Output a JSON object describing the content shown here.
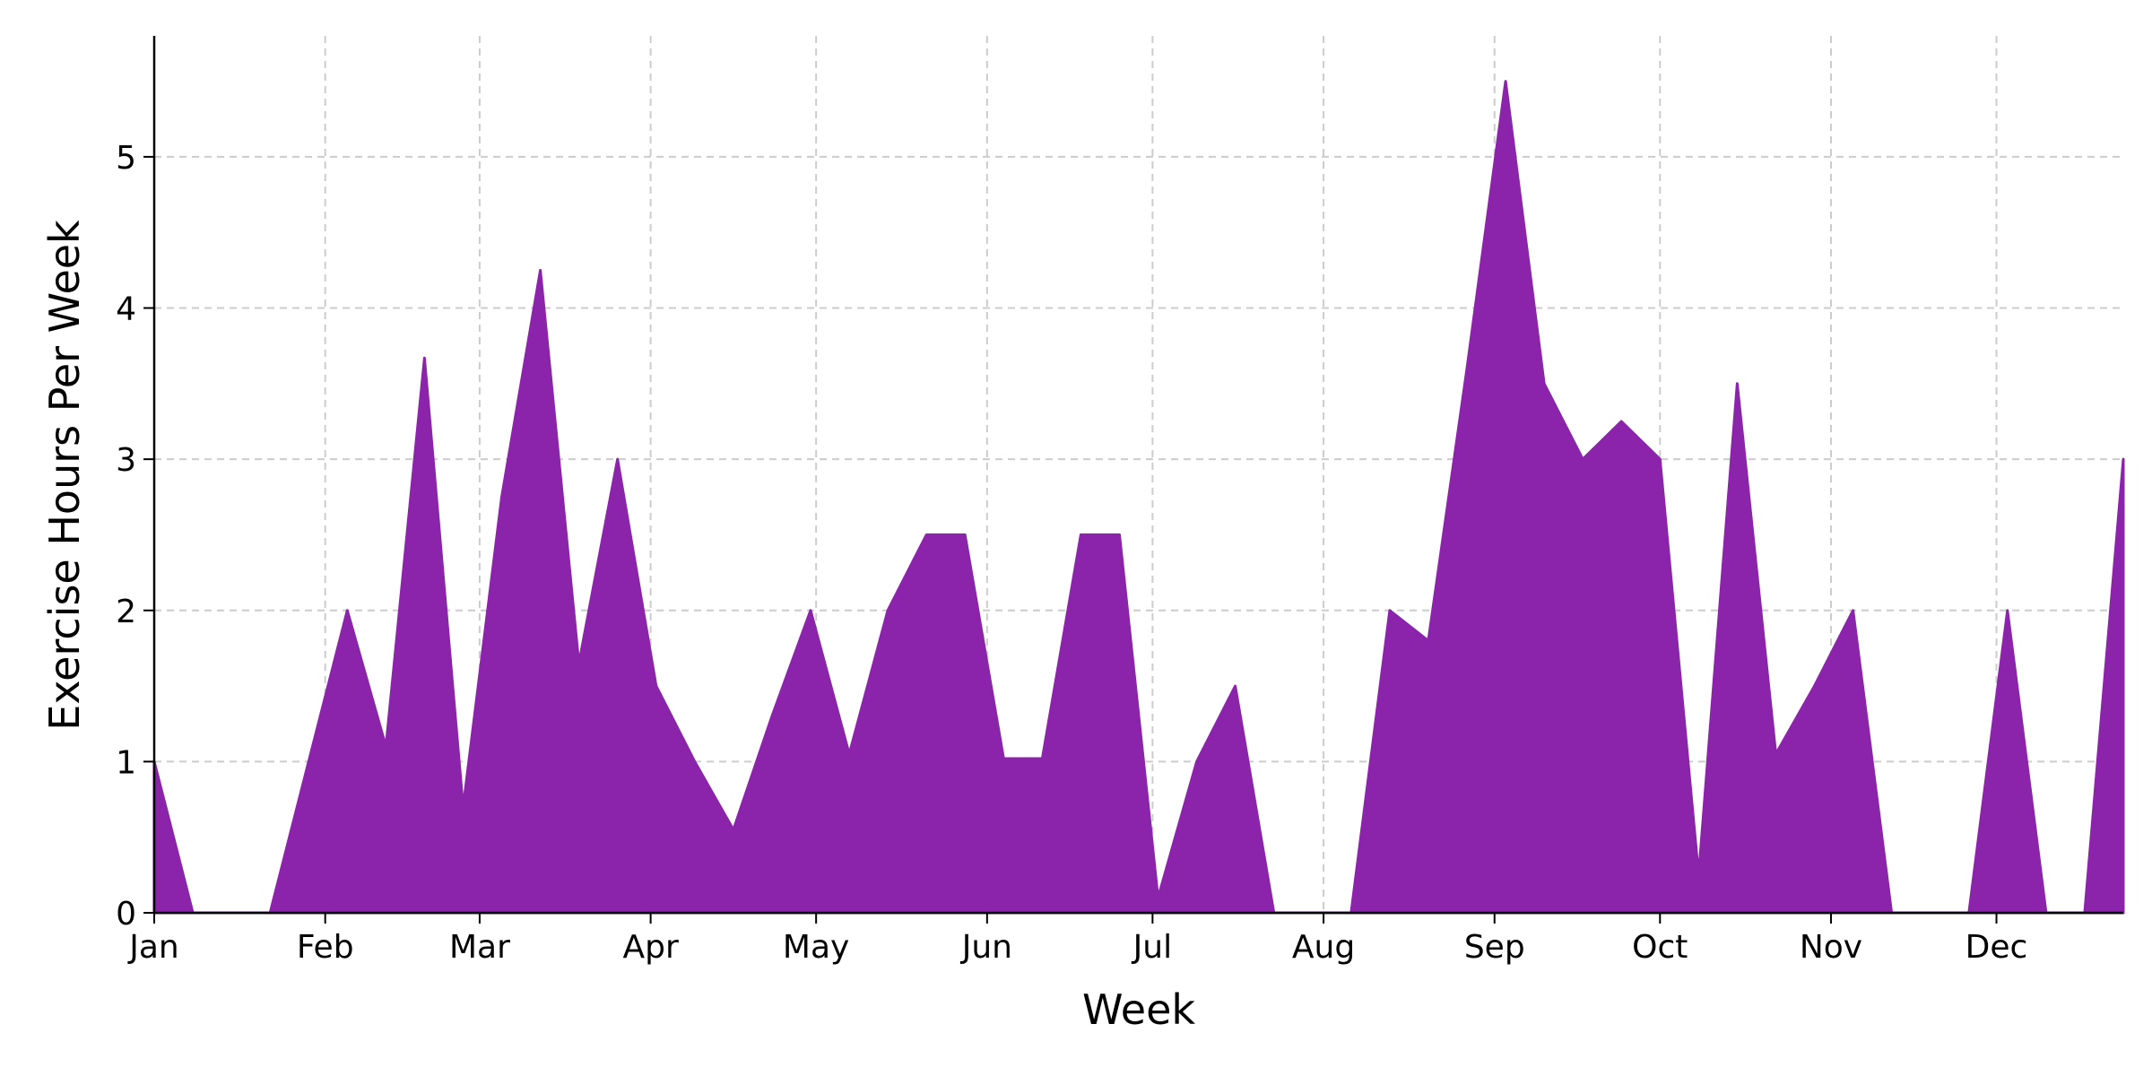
{
  "chart_data": {
    "type": "area",
    "title": "",
    "xlabel": "Week",
    "ylabel": "Exercise Hours Per Week",
    "ylim": [
      0,
      5.8
    ],
    "grid": true,
    "color": "#8b24aa",
    "yticks": [
      0,
      1,
      2,
      3,
      4,
      5
    ],
    "xticks": [
      {
        "label": "Jan",
        "date": "2023-01-01"
      },
      {
        "label": "Feb",
        "date": "2023-02-01"
      },
      {
        "label": "Mar",
        "date": "2023-03-01"
      },
      {
        "label": "Apr",
        "date": "2023-04-01"
      },
      {
        "label": "May",
        "date": "2023-05-01"
      },
      {
        "label": "Jun",
        "date": "2023-06-01"
      },
      {
        "label": "Jul",
        "date": "2023-07-01"
      },
      {
        "label": "Aug",
        "date": "2023-08-01"
      },
      {
        "label": "Sep",
        "date": "2023-09-01"
      },
      {
        "label": "Oct",
        "date": "2023-10-01"
      },
      {
        "label": "Nov",
        "date": "2023-11-01"
      },
      {
        "label": "Dec",
        "date": "2023-12-01"
      }
    ],
    "xlim": [
      "2023-01-01",
      "2023-12-24"
    ],
    "series": [
      {
        "x": [
          "2023-01-01",
          "2023-01-08",
          "2023-01-15",
          "2023-01-22",
          "2023-01-29",
          "2023-02-05",
          "2023-02-12",
          "2023-02-19",
          "2023-02-26",
          "2023-03-05",
          "2023-03-12",
          "2023-03-19",
          "2023-03-26",
          "2023-04-02",
          "2023-04-09",
          "2023-04-16",
          "2023-04-23",
          "2023-04-30",
          "2023-05-07",
          "2023-05-14",
          "2023-05-21",
          "2023-05-28",
          "2023-06-04",
          "2023-06-11",
          "2023-06-18",
          "2023-06-25",
          "2023-07-02",
          "2023-07-09",
          "2023-07-16",
          "2023-07-23",
          "2023-07-30",
          "2023-08-06",
          "2023-08-13",
          "2023-08-20",
          "2023-08-27",
          "2023-09-03",
          "2023-09-10",
          "2023-09-17",
          "2023-09-24",
          "2023-10-01",
          "2023-10-08",
          "2023-10-15",
          "2023-10-22",
          "2023-10-29",
          "2023-11-05",
          "2023-11-12",
          "2023-11-19",
          "2023-11-26",
          "2023-12-03",
          "2023-12-10",
          "2023-12-17",
          "2023-12-24"
        ],
        "values": [
          1.0,
          0.0,
          0.0,
          0.0,
          1.0,
          2.0,
          1.1,
          3.67,
          0.7,
          2.75,
          4.25,
          1.65,
          3.0,
          1.5,
          1.0,
          0.55,
          1.3,
          2.0,
          1.05,
          2.0,
          2.5,
          2.5,
          1.02,
          1.02,
          2.5,
          2.5,
          0.1,
          1.0,
          1.5,
          0.0,
          0.0,
          0.0,
          2.0,
          1.8,
          3.6,
          5.5,
          3.5,
          3.0,
          3.25,
          3.0,
          0.25,
          3.5,
          1.05,
          1.5,
          2.0,
          0.0,
          0.0,
          0.0,
          2.0,
          0.0,
          0.0,
          3.0
        ]
      }
    ]
  }
}
